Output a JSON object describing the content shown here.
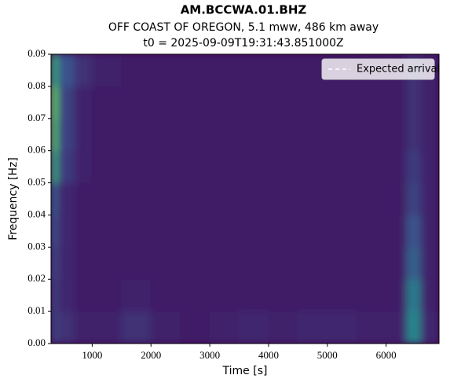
{
  "chart_data": {
    "type": "spectrogram",
    "title": "AM.BCCWA.01.BHZ",
    "subtitle": "OFF COAST OF OREGON, 5.1 mww, 486 km away",
    "subtitle2": "t0 = 2025-09-09T19:31:43.851000Z",
    "x_label": "Time [s]",
    "y_label": "Frequency [Hz]",
    "xlim": [
      300,
      6900
    ],
    "xticks": [
      1000,
      2000,
      3000,
      4000,
      5000,
      6000
    ],
    "ylim": [
      0,
      0.09
    ],
    "yticks": [
      {
        "value": 0,
        "label": "0.00"
      },
      {
        "value": 0.01,
        "label": "0.01"
      },
      {
        "value": 0.02,
        "label": "0.02"
      },
      {
        "value": 0.03,
        "label": "0.03"
      },
      {
        "value": 0.04,
        "label": "0.04"
      },
      {
        "value": 0.05,
        "label": "0.05"
      },
      {
        "value": 0.06,
        "label": "0.06"
      },
      {
        "value": 0.07,
        "label": "0.07"
      },
      {
        "value": 0.08,
        "label": "0.08"
      },
      {
        "value": 0.09,
        "label": "0.09"
      }
    ],
    "time_bins": [
      300,
      420,
      700,
      1000,
      1500,
      2000,
      2500,
      3000,
      3500,
      4000,
      4500,
      5000,
      5500,
      6000,
      6350,
      6600,
      6900
    ],
    "freq_bins": [
      0,
      0.01,
      0.02,
      0.03,
      0.04,
      0.05,
      0.06,
      0.07,
      0.08,
      0.09
    ],
    "colormap": "viridis",
    "z": [
      [
        0.2,
        0.15,
        0.1,
        0.1,
        0.15,
        0.1,
        0.08,
        0.1,
        0.12,
        0.1,
        0.12,
        0.12,
        0.1,
        0.1,
        0.45,
        0.12
      ],
      [
        0.2,
        0.12,
        0.08,
        0.08,
        0.1,
        0.08,
        0.08,
        0.08,
        0.08,
        0.08,
        0.08,
        0.08,
        0.08,
        0.08,
        0.4,
        0.1
      ],
      [
        0.22,
        0.12,
        0.08,
        0.08,
        0.08,
        0.08,
        0.08,
        0.08,
        0.08,
        0.08,
        0.08,
        0.08,
        0.08,
        0.08,
        0.3,
        0.1
      ],
      [
        0.25,
        0.12,
        0.08,
        0.08,
        0.08,
        0.08,
        0.08,
        0.08,
        0.08,
        0.08,
        0.08,
        0.08,
        0.08,
        0.08,
        0.25,
        0.1
      ],
      [
        0.3,
        0.12,
        0.08,
        0.08,
        0.08,
        0.08,
        0.08,
        0.08,
        0.08,
        0.08,
        0.08,
        0.08,
        0.08,
        0.08,
        0.2,
        0.1
      ],
      [
        0.6,
        0.18,
        0.1,
        0.08,
        0.08,
        0.08,
        0.08,
        0.08,
        0.08,
        0.08,
        0.08,
        0.08,
        0.08,
        0.08,
        0.18,
        0.1
      ],
      [
        0.7,
        0.2,
        0.1,
        0.08,
        0.08,
        0.08,
        0.08,
        0.08,
        0.08,
        0.08,
        0.08,
        0.08,
        0.08,
        0.08,
        0.15,
        0.1
      ],
      [
        0.75,
        0.2,
        0.1,
        0.08,
        0.08,
        0.08,
        0.08,
        0.08,
        0.08,
        0.08,
        0.08,
        0.08,
        0.08,
        0.08,
        0.15,
        0.1
      ],
      [
        0.6,
        0.25,
        0.15,
        0.1,
        0.08,
        0.08,
        0.08,
        0.08,
        0.08,
        0.08,
        0.08,
        0.08,
        0.08,
        0.08,
        0.15,
        0.1
      ]
    ],
    "legend": {
      "loc": "upper right",
      "entries": [
        {
          "label": "Expected arrival",
          "color": "#ffffff",
          "dash": "5,4"
        }
      ]
    }
  }
}
